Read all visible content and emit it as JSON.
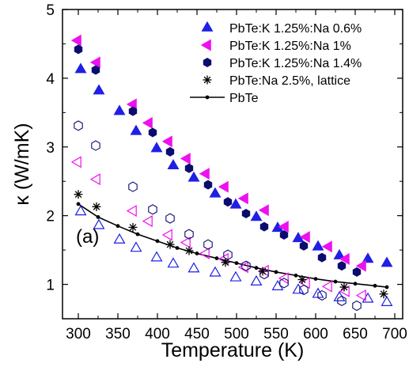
{
  "chart_data": {
    "type": "scatter",
    "title": "",
    "xlabel": "Temperature (K)",
    "ylabel": "κ (W/mK)",
    "xlim": [
      280,
      710
    ],
    "ylim": [
      0.5,
      5
    ],
    "xticks": [
      300,
      350,
      400,
      450,
      500,
      550,
      600,
      650,
      700
    ],
    "yticks": [
      1,
      2,
      3,
      4,
      5
    ],
    "annotation": "(a)",
    "legend_position": "top-right",
    "colors": {
      "blue": "#1f1fe6",
      "magenta": "#ee10ee",
      "navy": "#0c0c6e",
      "black": "#000000"
    },
    "series": [
      {
        "name": "PbTe:K 1.25%:Na 0.6%",
        "marker": "triangle-up",
        "color": "#1f1fe6",
        "total_x": [
          303,
          326,
          352,
          373,
          399,
          420,
          446,
          473,
          499,
          525,
          552,
          578,
          603,
          630,
          666,
          690
        ],
        "total_y": [
          4.13,
          3.82,
          3.52,
          3.23,
          2.98,
          2.73,
          2.55,
          2.32,
          2.16,
          1.98,
          1.82,
          1.67,
          1.55,
          1.42,
          1.37,
          1.31
        ],
        "lattice_x": [
          303,
          326,
          352,
          373,
          399,
          420,
          446,
          473,
          499,
          525,
          552,
          578,
          603,
          630,
          666,
          690
        ],
        "lattice_y": [
          2.06,
          1.86,
          1.65,
          1.53,
          1.39,
          1.3,
          1.23,
          1.17,
          1.1,
          1.04,
          0.97,
          0.92,
          0.86,
          0.81,
          0.79,
          0.74
        ]
      },
      {
        "name": "PbTe:K 1.25%:Na 1%",
        "marker": "triangle-left",
        "color": "#ee10ee",
        "total_x": [
          299,
          323,
          369,
          389,
          414,
          437,
          461,
          485,
          510,
          536,
          561,
          588,
          616,
          638,
          659
        ],
        "total_y": [
          4.55,
          4.23,
          3.62,
          3.35,
          3.08,
          2.83,
          2.61,
          2.42,
          2.25,
          2.08,
          1.84,
          1.69,
          1.55,
          1.37,
          1.27
        ],
        "lattice_x": [
          299,
          323,
          369,
          389,
          414,
          437,
          461,
          485,
          510,
          536,
          561,
          588,
          616,
          638,
          659
        ],
        "lattice_y": [
          2.78,
          2.53,
          2.07,
          1.92,
          1.72,
          1.61,
          1.45,
          1.37,
          1.25,
          1.2,
          1.09,
          1.02,
          0.97,
          0.9,
          0.84
        ]
      },
      {
        "name": "PbTe:K 1.25%:Na 1.4%",
        "marker": "hexagon",
        "color": "#0c0c6e",
        "total_x": [
          300,
          322,
          369,
          394,
          416,
          440,
          464,
          489,
          512,
          535,
          560,
          585,
          608,
          633,
          652
        ],
        "total_y": [
          4.42,
          4.12,
          3.52,
          3.21,
          2.93,
          2.69,
          2.45,
          2.2,
          2.03,
          1.84,
          1.72,
          1.56,
          1.39,
          1.27,
          1.18
        ],
        "lattice_x": [
          300,
          322,
          369,
          394,
          416,
          440,
          464,
          489,
          512,
          535,
          560,
          585,
          608,
          633,
          652
        ],
        "lattice_y": [
          3.31,
          3.02,
          2.42,
          2.09,
          1.96,
          1.73,
          1.58,
          1.43,
          1.27,
          1.15,
          1.02,
          0.92,
          0.84,
          0.76,
          0.69
        ]
      },
      {
        "name": "PbTe:Na 2.5%, lattice",
        "marker": "asterisk",
        "color": "#000000",
        "x": [
          300,
          323,
          369,
          416,
          440,
          486,
          533,
          583,
          636,
          686
        ],
        "y": [
          2.31,
          2.13,
          1.83,
          1.58,
          1.49,
          1.32,
          1.19,
          1.07,
          0.96,
          0.86
        ]
      },
      {
        "name": "PbTe",
        "marker": "line-dot",
        "color": "#000000",
        "x": [
          300,
          325,
          350,
          375,
          400,
          425,
          450,
          475,
          500,
          525,
          550,
          575,
          600,
          625,
          650,
          675,
          690
        ],
        "y": [
          2.17,
          1.98,
          1.85,
          1.73,
          1.63,
          1.53,
          1.45,
          1.38,
          1.31,
          1.24,
          1.18,
          1.13,
          1.08,
          1.04,
          1.01,
          0.98,
          0.96
        ]
      }
    ]
  }
}
